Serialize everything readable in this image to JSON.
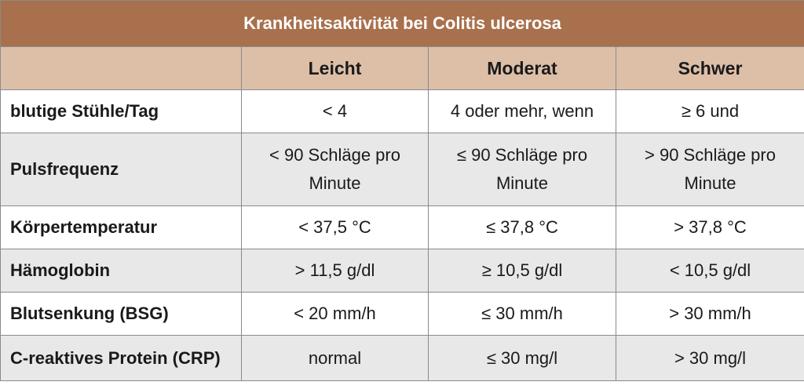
{
  "title": "Krankheitsaktivität bei Colitis ulcerosa",
  "columns": [
    "",
    "Leicht",
    "Moderat",
    "Schwer"
  ],
  "rows": [
    {
      "label": "blutige Stühle/Tag",
      "values": [
        "< 4",
        "4 oder mehr, wenn",
        "≥ 6 und"
      ]
    },
    {
      "label": "Pulsfrequenz",
      "values": [
        "< 90 Schläge pro Minute",
        "≤ 90 Schläge pro Minute",
        "> 90 Schläge pro Minute"
      ]
    },
    {
      "label": "Körpertemperatur",
      "values": [
        "< 37,5 °C",
        "≤ 37,8 °C",
        "> 37,8 °C"
      ]
    },
    {
      "label": "Hämoglobin",
      "values": [
        "> 11,5 g/dl",
        "≥ 10,5 g/dl",
        "< 10,5 g/dl"
      ]
    },
    {
      "label": "Blutsenkung (BSG)",
      "values": [
        "< 20 mm/h",
        "≤ 30 mm/h",
        "> 30 mm/h"
      ]
    },
    {
      "label": "C-reaktives Protein (CRP)",
      "values": [
        "normal",
        "≤ 30 mg/l",
        "> 30 mg/l"
      ]
    }
  ],
  "colors": {
    "title_bg": "#a8704c",
    "header_bg": "#ddbfa8",
    "stripe_bg": "#e8e8e8",
    "border": "#8a8a8a"
  }
}
